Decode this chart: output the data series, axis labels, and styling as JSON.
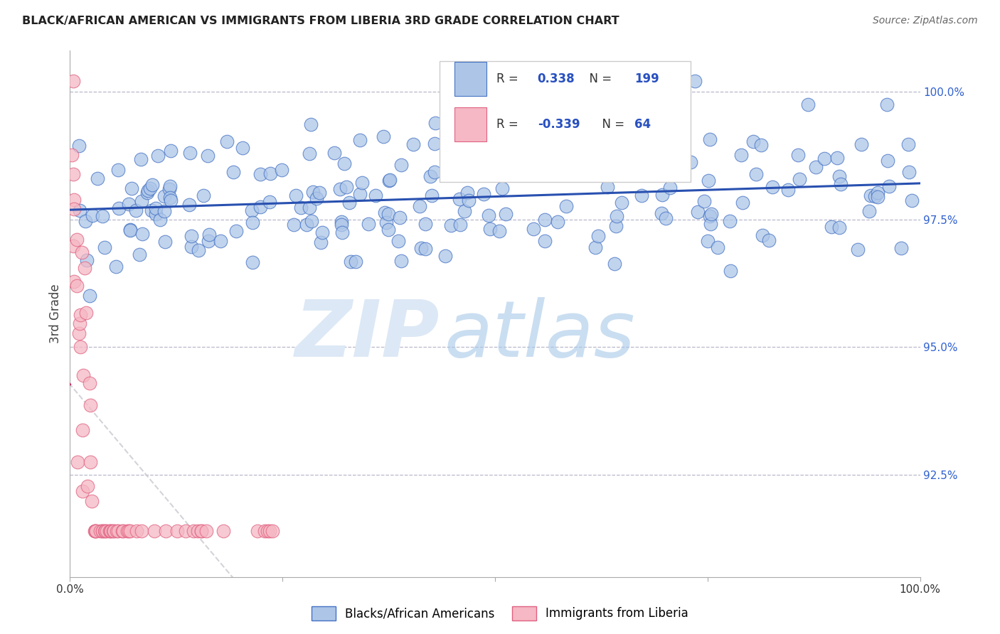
{
  "title": "BLACK/AFRICAN AMERICAN VS IMMIGRANTS FROM LIBERIA 3RD GRADE CORRELATION CHART",
  "source": "Source: ZipAtlas.com",
  "ylabel": "3rd Grade",
  "right_yticks": [
    "100.0%",
    "97.5%",
    "95.0%",
    "92.5%"
  ],
  "right_ytick_vals": [
    1.0,
    0.975,
    0.95,
    0.925
  ],
  "legend_blue_label": "Blacks/African Americans",
  "legend_pink_label": "Immigrants from Liberia",
  "blue_R": "0.338",
  "blue_N": "199",
  "pink_R": "-0.339",
  "pink_N": "64",
  "blue_color": "#adc6e8",
  "pink_color": "#f5b8c4",
  "blue_edge_color": "#4472c4",
  "pink_edge_color": "#e06080",
  "blue_line_color": "#2850b0",
  "pink_line_color": "#c03060",
  "dashed_line_color": "#c8c8d0",
  "xlim": [
    0.0,
    1.0
  ],
  "ylim": [
    0.905,
    1.008
  ],
  "seed": 42
}
